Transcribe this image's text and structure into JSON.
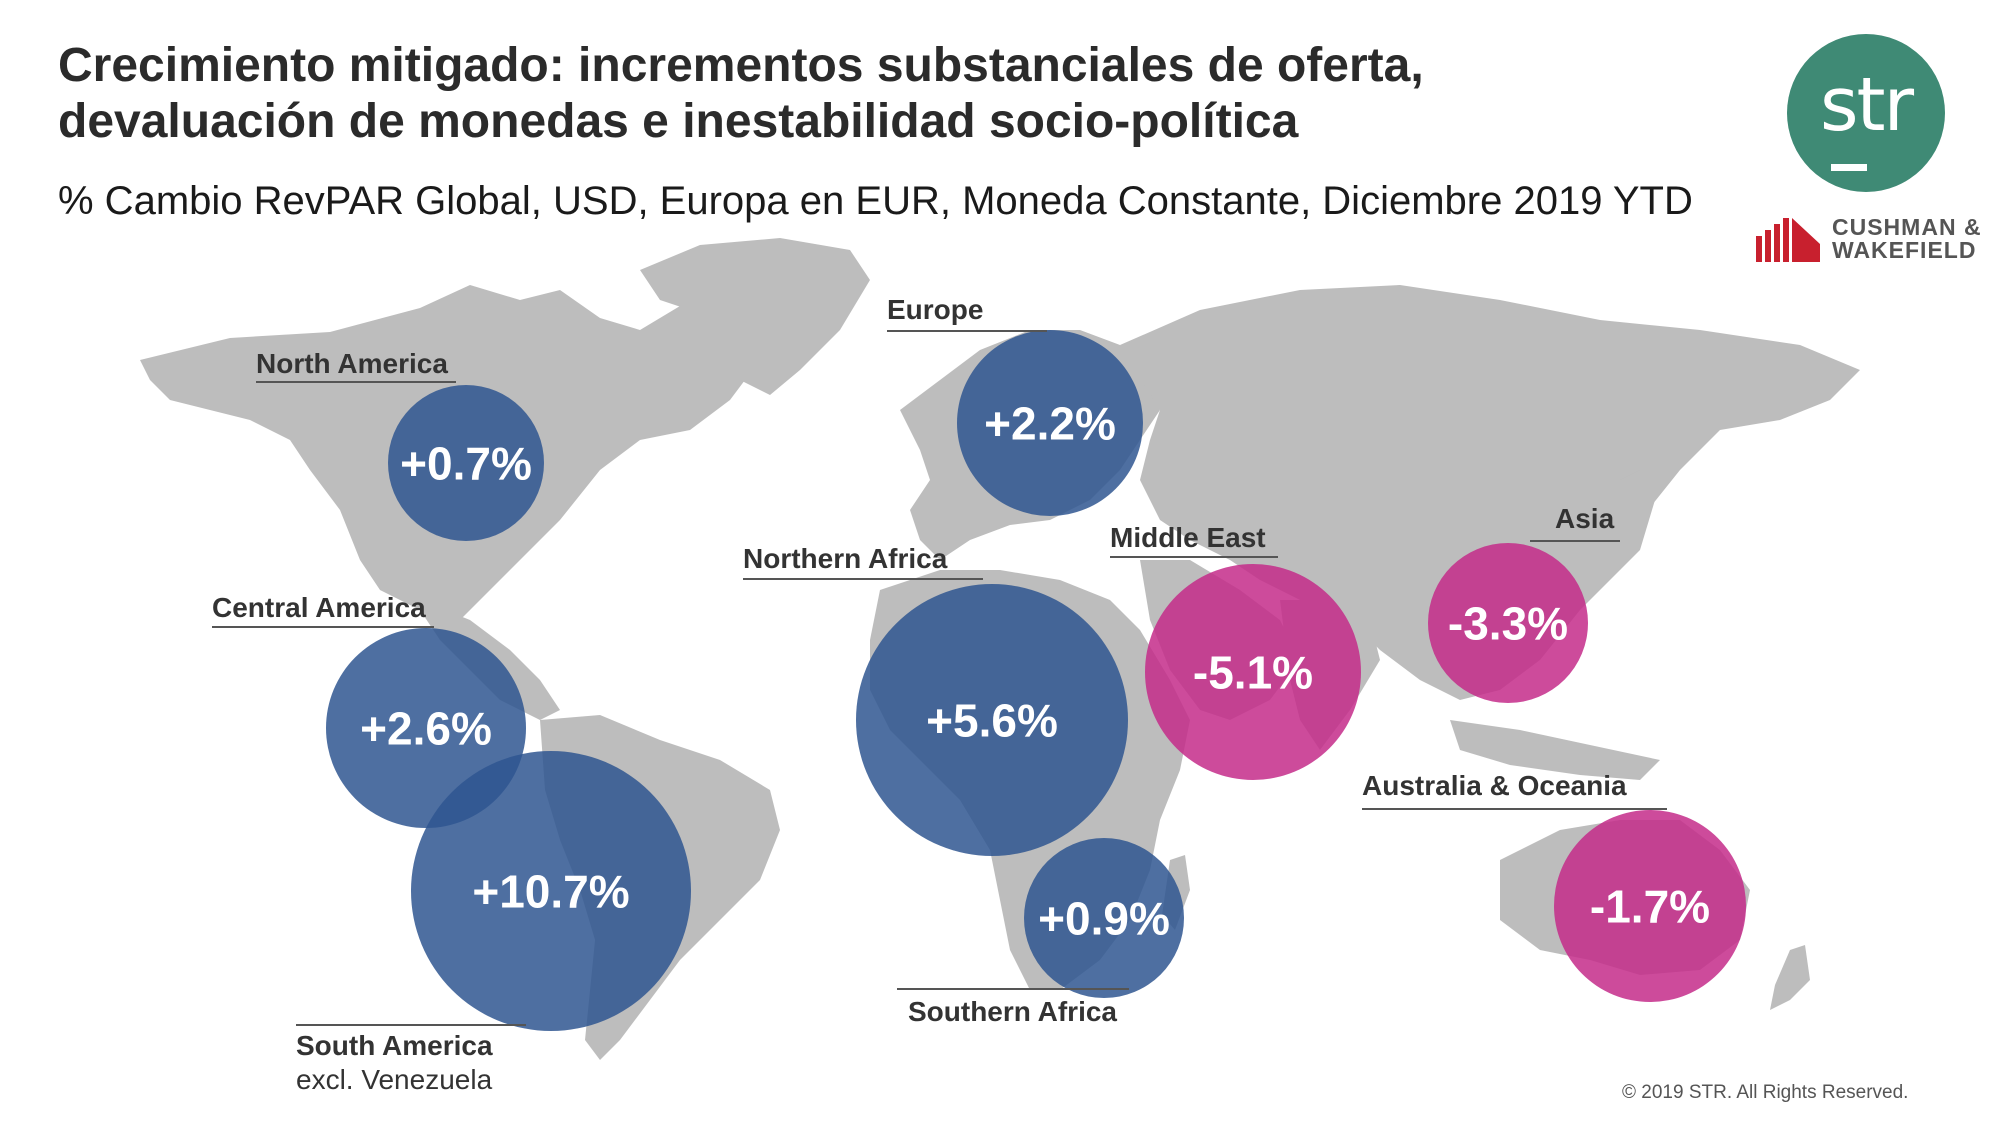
{
  "title_line1": "Crecimiento mitigado: incrementos substanciales de oferta,",
  "title_line2": "devaluación de monedas e inestabilidad socio-política",
  "subtitle": "% Cambio RevPAR Global, USD, Europa en EUR, Moneda Constante, Diciembre 2019 YTD",
  "logo_str": "str",
  "logo_cw_line1": "CUSHMAN &",
  "logo_cw_line2": "WAKEFIELD",
  "copyright": "© 2019 STR. All Rights Reserved.",
  "colors": {
    "growth": "#2f5690",
    "decline": "#c42b8a",
    "land": "#bdbdbd",
    "str_logo": "#3f8a75",
    "cw_logo": "#c8202e"
  },
  "regions": [
    {
      "name": "North America",
      "value": "+0.7%",
      "num": 0.7
    },
    {
      "name": "Europe",
      "value": "+2.2%",
      "num": 2.2
    },
    {
      "name": "Central America",
      "value": "+2.6%",
      "num": 2.6
    },
    {
      "name": "South America",
      "note": "excl. Venezuela",
      "value": "+10.7%",
      "num": 10.7
    },
    {
      "name": "Northern Africa",
      "value": "+5.6%",
      "num": 5.6
    },
    {
      "name": "Southern Africa",
      "value": "+0.9%",
      "num": 0.9
    },
    {
      "name": "Middle East",
      "value": "-5.1%",
      "num": -5.1
    },
    {
      "name": "Asia",
      "value": "-3.3%",
      "num": -3.3
    },
    {
      "name": "Australia & Oceania",
      "value": "-1.7%",
      "num": -1.7
    }
  ]
}
